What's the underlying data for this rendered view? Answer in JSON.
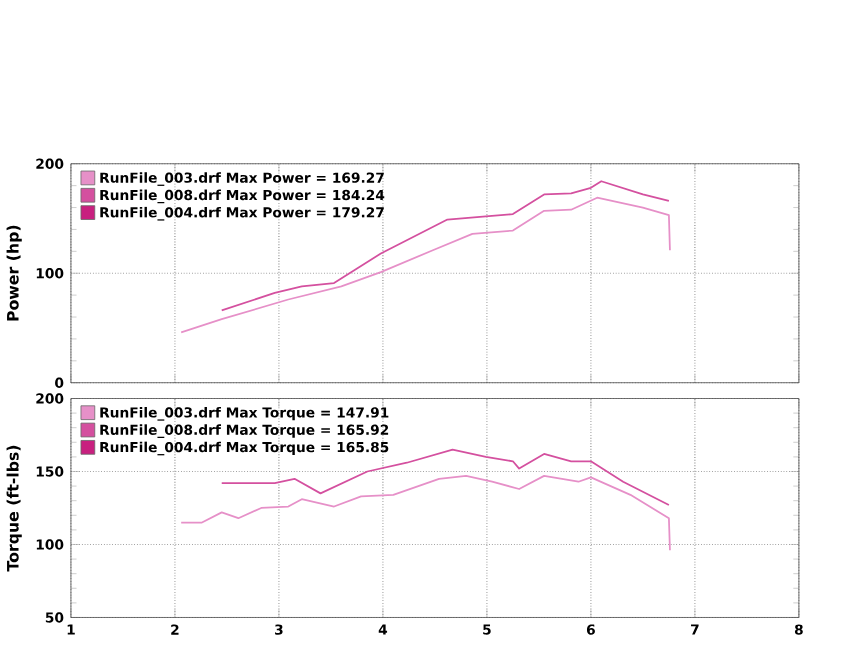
{
  "chart_data": [
    {
      "type": "line",
      "ylabel": "Power (hp)",
      "xlim": [
        1,
        8
      ],
      "xticks": [
        1,
        2,
        3,
        4,
        5,
        6,
        7,
        8
      ],
      "ylim": [
        0,
        200
      ],
      "yticks": [
        0,
        100,
        200
      ],
      "grid": true,
      "legend": "top left",
      "tick_labels": "y",
      "x": [
        2.06,
        2.45,
        2.96,
        3.09,
        3.22,
        3.53,
        3.6,
        3.98,
        4.48,
        4.62,
        4.86,
        4.99,
        5.25,
        5.55,
        5.81,
        6.0,
        6.06,
        6.1,
        6.5,
        6.75,
        6.76
      ],
      "series": [
        {
          "name": "RunFile_003.drf Max Power = 169.27",
          "color": "#e690c8",
          "values": [
            46,
            58,
            null,
            76,
            null,
            null,
            88,
            101,
            121,
            null,
            136,
            null,
            139,
            157,
            158,
            null,
            169,
            null,
            160,
            153,
            121
          ]
        },
        {
          "name": "RunFile_008.drf Max Power = 184.24",
          "color": "#d4509f",
          "values": [
            null,
            66,
            82,
            null,
            88,
            91,
            null,
            118,
            null,
            149,
            null,
            152,
            154,
            172,
            173,
            178,
            null,
            184,
            172,
            166,
            null
          ]
        },
        {
          "name": "RunFile_004.drf Max Power = 179.27",
          "color": "#c8207f",
          "values": [
            null,
            null,
            null,
            null,
            null,
            null,
            null,
            null,
            null,
            null,
            null,
            null,
            null,
            null,
            null,
            null,
            null,
            null,
            null,
            null,
            null
          ]
        }
      ]
    },
    {
      "type": "line",
      "ylabel": "Torque (ft-lbs)",
      "xlim": [
        1,
        8
      ],
      "xticks": [
        1,
        2,
        3,
        4,
        5,
        6,
        7,
        8
      ],
      "ylim": [
        50,
        200
      ],
      "yticks": [
        50,
        100,
        150,
        200
      ],
      "grid": true,
      "legend": "top left",
      "x": [
        2.06,
        2.26,
        2.45,
        2.61,
        2.83,
        2.96,
        3.09,
        3.15,
        3.22,
        3.4,
        3.53,
        3.79,
        3.85,
        4.1,
        4.23,
        4.54,
        4.67,
        4.8,
        4.99,
        5.05,
        5.25,
        5.31,
        5.55,
        5.81,
        5.88,
        6.0,
        6.31,
        6.38,
        6.75,
        6.76
      ],
      "series": [
        {
          "name": "RunFile_003.drf Max Torque = 147.91",
          "color": "#e690c8",
          "values": [
            115,
            115,
            122,
            118,
            125,
            null,
            126,
            null,
            131,
            null,
            126,
            133,
            null,
            134,
            null,
            145,
            null,
            147,
            null,
            143,
            null,
            138,
            147,
            null,
            143,
            146,
            null,
            134,
            118,
            96
          ]
        },
        {
          "name": "RunFile_008.drf Max Torque = 165.92",
          "color": "#d4509f",
          "values": [
            null,
            null,
            142,
            null,
            null,
            142,
            null,
            145,
            null,
            135,
            null,
            null,
            150,
            null,
            156,
            null,
            165,
            null,
            160,
            null,
            157,
            152,
            162,
            157,
            null,
            157,
            143,
            null,
            127,
            null
          ]
        },
        {
          "name": "RunFile_004.drf Max Torque = 165.85",
          "color": "#c8207f",
          "values": [
            null,
            null,
            null,
            null,
            null,
            null,
            null,
            null,
            null,
            null,
            null,
            null,
            null,
            null,
            null,
            null,
            null,
            null,
            null,
            null,
            null,
            null,
            null,
            null,
            null,
            null,
            null,
            null,
            null,
            null
          ]
        }
      ]
    }
  ]
}
